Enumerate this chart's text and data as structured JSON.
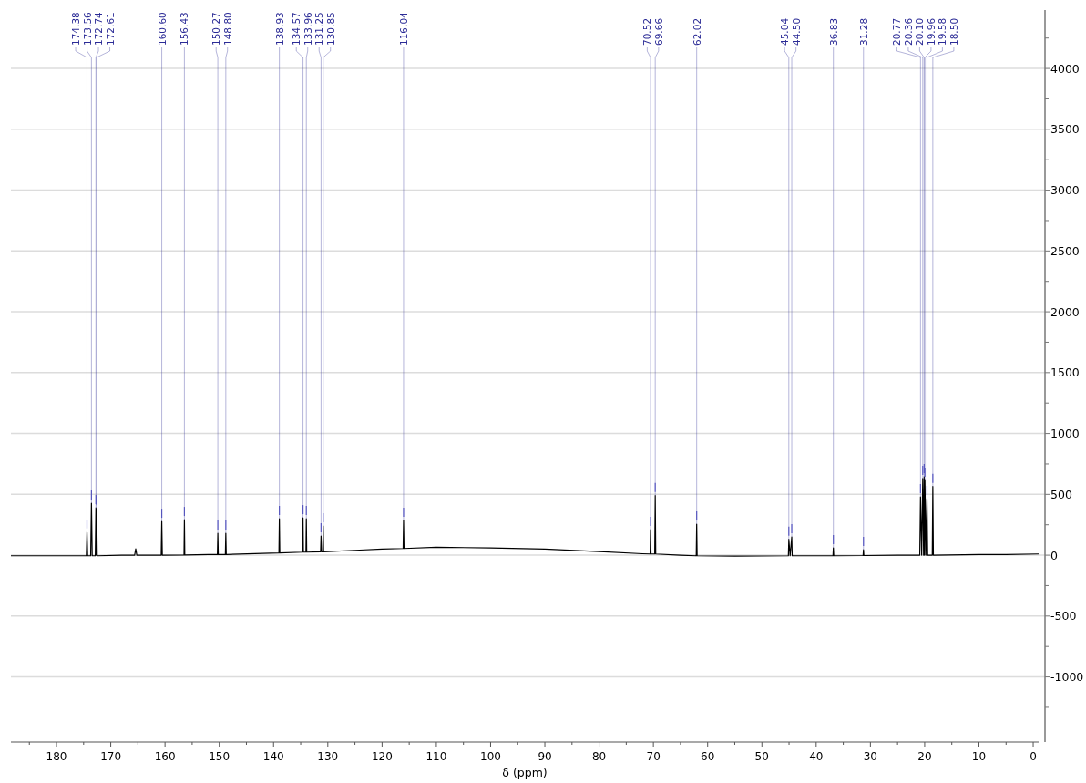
{
  "chart_data": {
    "type": "line",
    "xlabel": "δ (ppm)",
    "xlim": [
      188.4,
      -1.0
    ],
    "ylim": [
      -1535,
      4480
    ],
    "xticks": [
      180,
      170,
      160,
      150,
      140,
      130,
      120,
      110,
      100,
      90,
      80,
      70,
      60,
      50,
      40,
      30,
      20,
      10,
      0,
      {
        "value": 185,
        "label": null
      },
      {
        "value": 175,
        "label": null
      },
      {
        "value": 165,
        "label": null
      },
      {
        "value": 155,
        "label": null
      },
      {
        "value": 145,
        "label": null
      },
      {
        "value": 135,
        "label": null
      },
      {
        "value": 125,
        "label": null
      },
      {
        "value": 115,
        "label": null
      },
      {
        "value": 105,
        "label": null
      },
      {
        "value": 95,
        "label": null
      },
      {
        "value": 85,
        "label": null
      },
      {
        "value": 75,
        "label": null
      },
      {
        "value": 65,
        "label": null
      },
      {
        "value": 55,
        "label": null
      },
      {
        "value": 45,
        "label": null
      },
      {
        "value": 35,
        "label": null
      },
      {
        "value": 25,
        "label": null
      },
      {
        "value": 15,
        "label": null
      },
      {
        "value": 5,
        "label": null
      }
    ],
    "yticks": [
      -1000,
      -500,
      0,
      500,
      1000,
      1500,
      2000,
      2500,
      3000,
      3500,
      4000,
      {
        "value": -1250,
        "label": null
      },
      {
        "value": -750,
        "label": null
      },
      {
        "value": -250,
        "label": null
      },
      {
        "value": 250,
        "label": null
      },
      {
        "value": 750,
        "label": null
      },
      {
        "value": 1250,
        "label": null
      },
      {
        "value": 1750,
        "label": null
      },
      {
        "value": 2250,
        "label": null
      },
      {
        "value": 2750,
        "label": null
      },
      {
        "value": 3250,
        "label": null
      },
      {
        "value": 3750,
        "label": null
      },
      {
        "value": 4250,
        "label": null
      }
    ],
    "grid": "y",
    "marker": "none",
    "line_style": "solid",
    "series": [
      {
        "color": "#000000",
        "x": [
          188.4,
          180,
          175,
          174.5,
          174.38,
          174.26,
          173.7,
          173.56,
          173.42,
          172.85,
          172.74,
          172.67,
          172.61,
          172.5,
          168,
          165.6,
          165.4,
          165.2,
          162,
          160.7,
          160.6,
          160.5,
          156.5,
          156.43,
          156.36,
          152,
          150.35,
          150.27,
          150.19,
          148.88,
          148.8,
          148.72,
          142,
          139.01,
          138.93,
          138.85,
          134.65,
          134.57,
          134.5,
          134.03,
          133.96,
          133.89,
          131.33,
          131.25,
          131.18,
          130.92,
          130.85,
          130.78,
          125,
          120,
          116.12,
          116.04,
          115.96,
          110,
          100,
          90,
          80,
          72,
          70.6,
          70.52,
          70.44,
          69.75,
          69.66,
          69.57,
          65,
          62.1,
          62.02,
          61.94,
          55,
          45.12,
          45.04,
          44.8,
          44.5,
          44.42,
          40,
          36.9,
          36.83,
          36.76,
          31.35,
          31.28,
          31.21,
          25,
          20.9,
          20.77,
          20.55,
          20.36,
          20.2,
          20.1,
          20.03,
          19.96,
          19.77,
          19.58,
          19.45,
          18.6,
          18.5,
          18.4,
          10,
          5,
          -1.0
        ],
        "values": [
          -5,
          -5,
          -5,
          -5,
          190,
          -5,
          -5,
          427,
          -5,
          -5,
          390,
          0,
          380,
          -5,
          0,
          0,
          52,
          0,
          0,
          0,
          277,
          0,
          2,
          292,
          2,
          5,
          5,
          180,
          5,
          5,
          180,
          5,
          15,
          18,
          300,
          18,
          25,
          307,
          25,
          25,
          300,
          25,
          28,
          157,
          28,
          28,
          240,
          28,
          40,
          50,
          55,
          285,
          55,
          65,
          60,
          50,
          30,
          12,
          10,
          210,
          10,
          10,
          490,
          10,
          0,
          -5,
          255,
          -5,
          -8,
          -5,
          130,
          -5,
          150,
          -5,
          -5,
          -5,
          60,
          -5,
          -3,
          45,
          -3,
          0,
          0,
          480,
          0,
          630,
          0,
          645,
          0,
          615,
          0,
          465,
          0,
          0,
          565,
          0,
          5,
          5,
          10
        ]
      }
    ],
    "annotations": [
      {
        "text": "174.38",
        "x": 174.38,
        "y": 190
      },
      {
        "text": "173.56",
        "x": 173.56,
        "y": 427
      },
      {
        "text": "172.74",
        "x": 172.74,
        "y": 390
      },
      {
        "text": "172.61",
        "x": 172.61,
        "y": 380
      },
      {
        "text": "160.60",
        "x": 160.6,
        "y": 277
      },
      {
        "text": "156.43",
        "x": 156.43,
        "y": 292
      },
      {
        "text": "150.27",
        "x": 150.27,
        "y": 180
      },
      {
        "text": "148.80",
        "x": 148.8,
        "y": 180
      },
      {
        "text": "138.93",
        "x": 138.93,
        "y": 300
      },
      {
        "text": "134.57",
        "x": 134.57,
        "y": 307
      },
      {
        "text": "133.96",
        "x": 133.96,
        "y": 300
      },
      {
        "text": "131.25",
        "x": 131.25,
        "y": 157
      },
      {
        "text": "130.85",
        "x": 130.85,
        "y": 240
      },
      {
        "text": "116.04",
        "x": 116.04,
        "y": 285
      },
      {
        "text": "70.52",
        "x": 70.52,
        "y": 210
      },
      {
        "text": "69.66",
        "x": 69.66,
        "y": 490
      },
      {
        "text": "62.02",
        "x": 62.02,
        "y": 255
      },
      {
        "text": "45.04",
        "x": 45.04,
        "y": 130
      },
      {
        "text": "44.50",
        "x": 44.5,
        "y": 150
      },
      {
        "text": "36.83",
        "x": 36.83,
        "y": 60
      },
      {
        "text": "31.28",
        "x": 31.28,
        "y": 45
      },
      {
        "text": "20.77",
        "x": 20.77,
        "y": 480
      },
      {
        "text": "20.36",
        "x": 20.36,
        "y": 630
      },
      {
        "text": "20.10",
        "x": 20.1,
        "y": 645
      },
      {
        "text": "19.96",
        "x": 19.96,
        "y": 615
      },
      {
        "text": "19.58",
        "x": 19.58,
        "y": 465
      },
      {
        "text": "18.50",
        "x": 18.5,
        "y": 565
      }
    ]
  }
}
